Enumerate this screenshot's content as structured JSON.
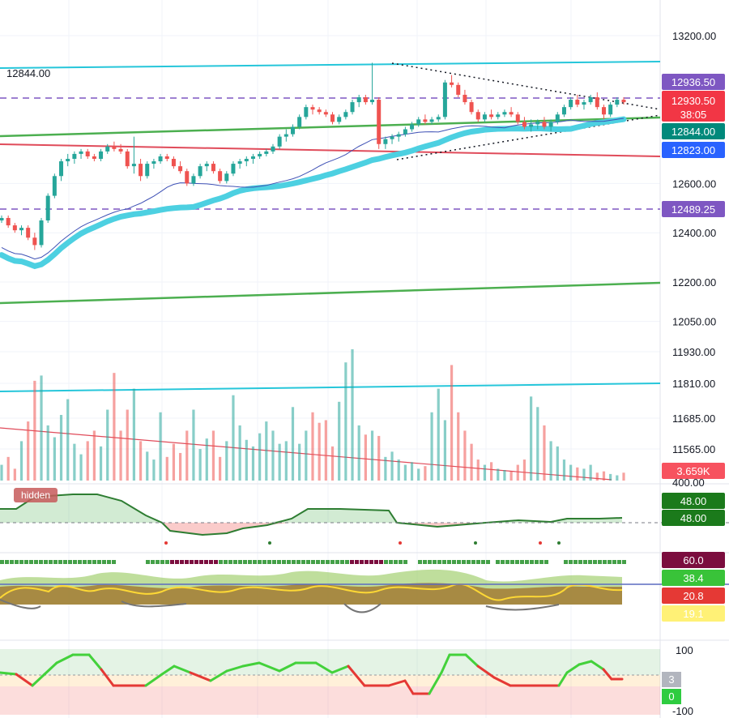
{
  "chart_data": {
    "type": "candlestick",
    "price_axis": {
      "ticks": [
        "13200.00",
        "12600.00",
        "12400.00",
        "12200.00",
        "12050.00",
        "11930.00",
        "11810.00",
        "11685.00",
        "11565.00"
      ],
      "tick_values": [
        13200,
        12600,
        12400,
        12200,
        12050,
        11930,
        11810,
        11685,
        11565
      ]
    },
    "price_labels": [
      {
        "text": "12936.50",
        "color": "#7e57c2",
        "value": 12936.5
      },
      {
        "text": "12930.50",
        "color": "#f23645",
        "value": 12930.5
      },
      {
        "text": "38:05",
        "color": "#f23645",
        "value": 12930.5,
        "role": "countdown"
      },
      {
        "text": "12844.00",
        "color": "#00897b",
        "value": 12844
      },
      {
        "text": "12823.00",
        "color": "#2962ff",
        "value": 12823
      },
      {
        "text": "12489.25",
        "color": "#7e57c2",
        "value": 12489.25
      },
      {
        "text": "3.659K",
        "color": "#f7525f",
        "value": 3659
      }
    ],
    "left_label": {
      "text": "12844.00",
      "color": "#26c6da"
    },
    "hidden_label": "hidden",
    "osc1_labels": [
      {
        "text": "400.00"
      },
      {
        "text": "48.00",
        "color": "#1b7a1b"
      },
      {
        "text": "48.00",
        "color": "#1b7a1b"
      }
    ],
    "osc2_labels": [
      {
        "text": "60.0",
        "color": "#7b0d3e"
      },
      {
        "text": "38.4",
        "color": "#39c339"
      },
      {
        "text": "20.8",
        "color": "#e53935"
      },
      {
        "text": "19.1",
        "color": "#fff176"
      }
    ],
    "osc3_labels": [
      {
        "text": "100"
      },
      {
        "text": "3",
        "color": "#b2b5be"
      },
      {
        "text": "0",
        "color": "#2ecc40"
      },
      {
        "text": "-100"
      }
    ],
    "series": [
      {
        "type": "candles",
        "values": [
          [
            12450,
            12470,
            12440,
            12460
          ],
          [
            12460,
            12470,
            12420,
            12430
          ],
          [
            12430,
            12440,
            12400,
            12410
          ],
          [
            12410,
            12430,
            12390,
            12420
          ],
          [
            12420,
            12430,
            12370,
            12380
          ],
          [
            12380,
            12400,
            12330,
            12350
          ],
          [
            12350,
            12460,
            12340,
            12450
          ],
          [
            12450,
            12560,
            12440,
            12550
          ],
          [
            12550,
            12640,
            12540,
            12630
          ],
          [
            12630,
            12700,
            12610,
            12690
          ],
          [
            12690,
            12720,
            12670,
            12700
          ],
          [
            12700,
            12730,
            12680,
            12720
          ],
          [
            12720,
            12740,
            12700,
            12730
          ],
          [
            12730,
            12740,
            12700,
            12710
          ],
          [
            12710,
            12720,
            12690,
            12700
          ],
          [
            12700,
            12740,
            12690,
            12730
          ],
          [
            12730,
            12760,
            12720,
            12750
          ],
          [
            12750,
            12770,
            12730,
            12740
          ],
          [
            12740,
            12760,
            12720,
            12730
          ],
          [
            12730,
            12740,
            12660,
            12670
          ],
          [
            12670,
            12790,
            12640,
            12680
          ],
          [
            12680,
            12700,
            12610,
            12630
          ],
          [
            12630,
            12690,
            12620,
            12680
          ],
          [
            12680,
            12700,
            12660,
            12690
          ],
          [
            12690,
            12720,
            12680,
            12710
          ],
          [
            12710,
            12720,
            12690,
            12700
          ],
          [
            12700,
            12710,
            12660,
            12670
          ],
          [
            12670,
            12690,
            12640,
            12650
          ],
          [
            12650,
            12660,
            12590,
            12600
          ],
          [
            12600,
            12640,
            12590,
            12630
          ],
          [
            12630,
            12680,
            12620,
            12670
          ],
          [
            12670,
            12690,
            12650,
            12680
          ],
          [
            12680,
            12690,
            12640,
            12650
          ],
          [
            12650,
            12660,
            12600,
            12610
          ],
          [
            12610,
            12650,
            12600,
            12640
          ],
          [
            12640,
            12690,
            12630,
            12680
          ],
          [
            12680,
            12700,
            12660,
            12690
          ],
          [
            12690,
            12710,
            12670,
            12700
          ],
          [
            12700,
            12720,
            12680,
            12710
          ],
          [
            12710,
            12730,
            12700,
            12720
          ],
          [
            12720,
            12740,
            12710,
            12730
          ],
          [
            12730,
            12760,
            12720,
            12750
          ],
          [
            12750,
            12800,
            12740,
            12790
          ],
          [
            12790,
            12820,
            12770,
            12800
          ],
          [
            12800,
            12840,
            12790,
            12830
          ],
          [
            12830,
            12880,
            12820,
            12870
          ],
          [
            12870,
            12920,
            12860,
            12910
          ],
          [
            12910,
            12920,
            12880,
            12900
          ],
          [
            12900,
            12910,
            12880,
            12890
          ],
          [
            12890,
            12900,
            12870,
            12880
          ],
          [
            12880,
            12890,
            12840,
            12850
          ],
          [
            12850,
            12880,
            12840,
            12870
          ],
          [
            12870,
            12900,
            12860,
            12890
          ],
          [
            12890,
            12940,
            12880,
            12930
          ],
          [
            12930,
            12960,
            12910,
            12950
          ],
          [
            12950,
            12960,
            12920,
            12930
          ],
          [
            12930,
            13090,
            12920,
            12940
          ],
          [
            12940,
            12950,
            12740,
            12760
          ],
          [
            12760,
            12790,
            12740,
            12780
          ],
          [
            12780,
            12800,
            12760,
            12790
          ],
          [
            12790,
            12810,
            12770,
            12800
          ],
          [
            12800,
            12830,
            12790,
            12820
          ],
          [
            12820,
            12850,
            12810,
            12840
          ],
          [
            12840,
            12870,
            12830,
            12860
          ],
          [
            12860,
            12880,
            12840,
            12850
          ],
          [
            12850,
            12870,
            12840,
            12860
          ],
          [
            12860,
            12880,
            12850,
            12870
          ],
          [
            12870,
            13020,
            12860,
            13010
          ],
          [
            13010,
            13040,
            12990,
            13000
          ],
          [
            13000,
            13010,
            12950,
            12960
          ],
          [
            12960,
            12980,
            12920,
            12930
          ],
          [
            12930,
            12940,
            12880,
            12890
          ],
          [
            12890,
            12900,
            12850,
            12860
          ],
          [
            12860,
            12890,
            12850,
            12880
          ],
          [
            12880,
            12900,
            12860,
            12870
          ],
          [
            12870,
            12890,
            12860,
            12880
          ],
          [
            12880,
            12900,
            12870,
            12890
          ],
          [
            12890,
            12910,
            12870,
            12880
          ],
          [
            12880,
            12890,
            12840,
            12850
          ],
          [
            12850,
            12870,
            12820,
            12830
          ],
          [
            12830,
            12860,
            12810,
            12840
          ],
          [
            12840,
            12860,
            12820,
            12850
          ],
          [
            12850,
            12870,
            12820,
            12830
          ],
          [
            12830,
            12860,
            12810,
            12850
          ],
          [
            12850,
            12890,
            12840,
            12880
          ],
          [
            12880,
            12920,
            12870,
            12910
          ],
          [
            12910,
            12950,
            12900,
            12940
          ],
          [
            12940,
            12960,
            12910,
            12920
          ],
          [
            12920,
            12940,
            12900,
            12930
          ],
          [
            12930,
            12960,
            12920,
            12950
          ],
          [
            12950,
            12970,
            12900,
            12910
          ],
          [
            12910,
            12920,
            12860,
            12880
          ],
          [
            12880,
            12930,
            12870,
            12920
          ],
          [
            12920,
            12950,
            12910,
            12940
          ],
          [
            12940,
            12950,
            12920,
            12930
          ]
        ]
      },
      {
        "type": "volume",
        "values": [
          120,
          180,
          90,
          300,
          450,
          760,
          800,
          420,
          330,
          500,
          620,
          280,
          200,
          300,
          380,
          260,
          540,
          820,
          380,
          540,
          700,
          300,
          220,
          160,
          520,
          180,
          280,
          210,
          380,
          540,
          240,
          320,
          380,
          180,
          300,
          650,
          420,
          310,
          260,
          360,
          450,
          380,
          280,
          300,
          560,
          280,
          380,
          520,
          440,
          460,
          260,
          600,
          900,
          1000,
          420,
          350,
          380,
          340,
          180,
          220,
          160,
          120,
          140,
          90,
          110,
          520,
          700,
          460,
          880,
          520,
          380,
          280,
          160,
          120,
          140,
          90,
          80,
          70,
          120,
          160,
          640,
          560,
          420,
          300,
          260,
          160,
          120,
          100,
          90,
          120,
          60,
          70,
          50,
          40,
          60
        ]
      }
    ]
  }
}
